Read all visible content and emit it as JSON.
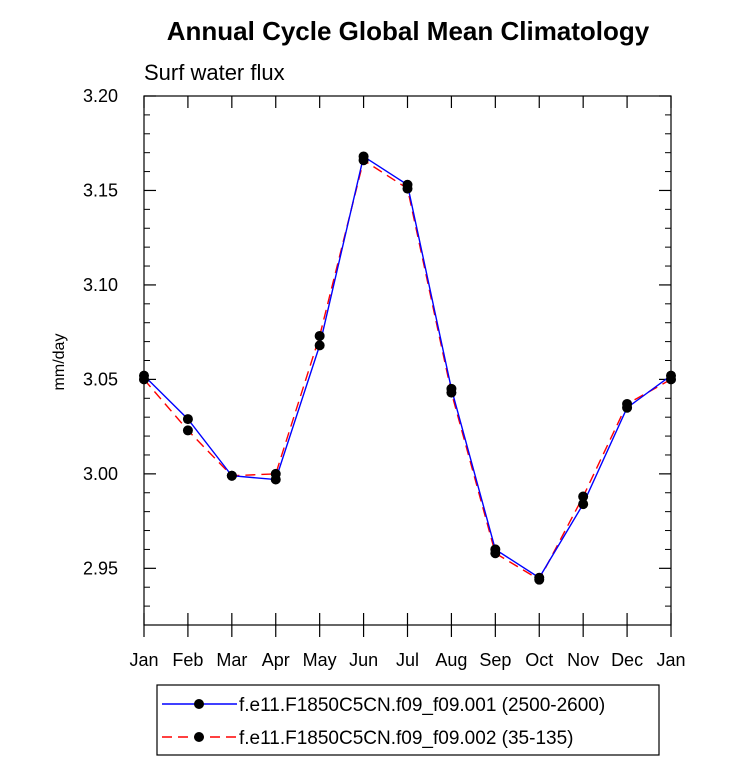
{
  "chart_data": {
    "type": "line",
    "title": "Annual Cycle Global Mean Climatology",
    "subtitle": "Surf water flux",
    "xlabel": "",
    "ylabel": "mm/day",
    "categories": [
      "Jan",
      "Feb",
      "Mar",
      "Apr",
      "May",
      "Jun",
      "Jul",
      "Aug",
      "Sep",
      "Oct",
      "Nov",
      "Dec",
      "Jan"
    ],
    "ylim": [
      2.92,
      3.2
    ],
    "yticks": [
      "2.95",
      "3.00",
      "3.05",
      "3.10",
      "3.15",
      "3.20"
    ],
    "ytick_values": [
      2.95,
      3.0,
      3.05,
      3.1,
      3.15,
      3.2
    ],
    "series": [
      {
        "name": "f.e11.F1850C5CN.f09_f09.001 (2500-2600)",
        "color": "#0000ff",
        "dash": "solid",
        "values": [
          3.052,
          3.029,
          2.999,
          2.997,
          3.068,
          3.168,
          3.153,
          3.045,
          2.96,
          2.945,
          2.984,
          3.035,
          3.052
        ]
      },
      {
        "name": "f.e11.F1850C5CN.f09_f09.002 (35-135)",
        "color": "#ff0000",
        "dash": "dashed",
        "values": [
          3.05,
          3.023,
          2.999,
          3.0,
          3.073,
          3.166,
          3.151,
          3.043,
          2.958,
          2.944,
          2.988,
          3.037,
          3.05
        ]
      }
    ],
    "legend": "bottom"
  }
}
